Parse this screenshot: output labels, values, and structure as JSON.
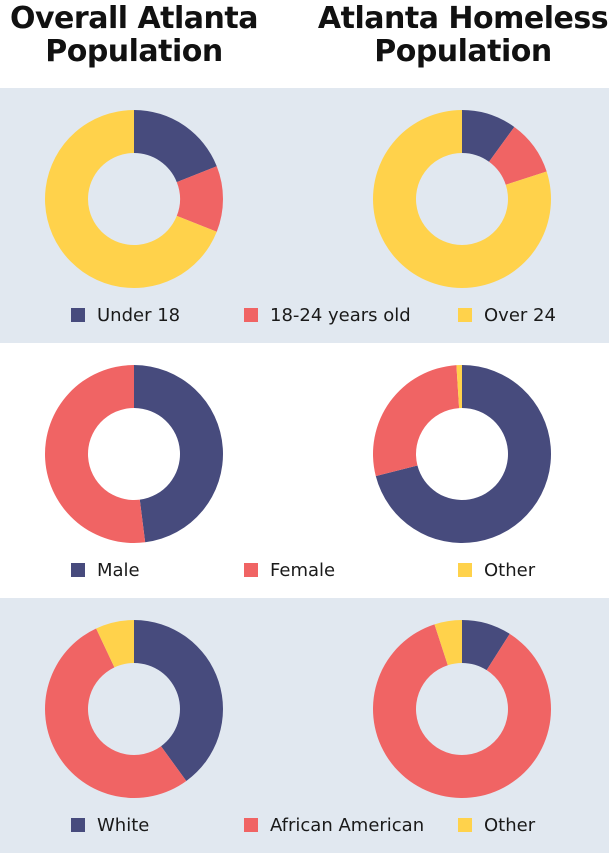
{
  "titles": {
    "left": "Overall Atlanta Population",
    "right": "Atlanta Homeless Population"
  },
  "colors": {
    "navy": "#474b7d",
    "coral": "#f06464",
    "yellow": "#ffd24b",
    "band": "#e1e8f0"
  },
  "chart_data": [
    {
      "type": "pie",
      "group": "age",
      "title": "Overall Atlanta Population",
      "categories": [
        "Under 18",
        "18-24 years old",
        "Over 24"
      ],
      "values": [
        19,
        12,
        69
      ]
    },
    {
      "type": "pie",
      "group": "age",
      "title": "Atlanta Homeless Population",
      "categories": [
        "Under 18",
        "18-24 years old",
        "Over 24"
      ],
      "values": [
        10,
        10,
        80
      ]
    },
    {
      "type": "pie",
      "group": "gender",
      "title": "Overall Atlanta Population",
      "categories": [
        "Male",
        "Female",
        "Other"
      ],
      "values": [
        48,
        52,
        0
      ]
    },
    {
      "type": "pie",
      "group": "gender",
      "title": "Atlanta Homeless Population",
      "categories": [
        "Male",
        "Female",
        "Other"
      ],
      "values": [
        71,
        28,
        1
      ]
    },
    {
      "type": "pie",
      "group": "race",
      "title": "Overall Atlanta Population",
      "categories": [
        "White",
        "African American",
        "Other"
      ],
      "values": [
        40,
        53,
        7
      ]
    },
    {
      "type": "pie",
      "group": "race",
      "title": "Atlanta Homeless Population",
      "categories": [
        "White",
        "African American",
        "Other"
      ],
      "values": [
        9,
        86,
        5
      ]
    }
  ],
  "legends": {
    "age": [
      "Under 18",
      "18-24 years old",
      "Over 24"
    ],
    "gender": [
      "Male",
      "Female",
      "Other"
    ],
    "race": [
      "White",
      "African American",
      "Other"
    ]
  }
}
